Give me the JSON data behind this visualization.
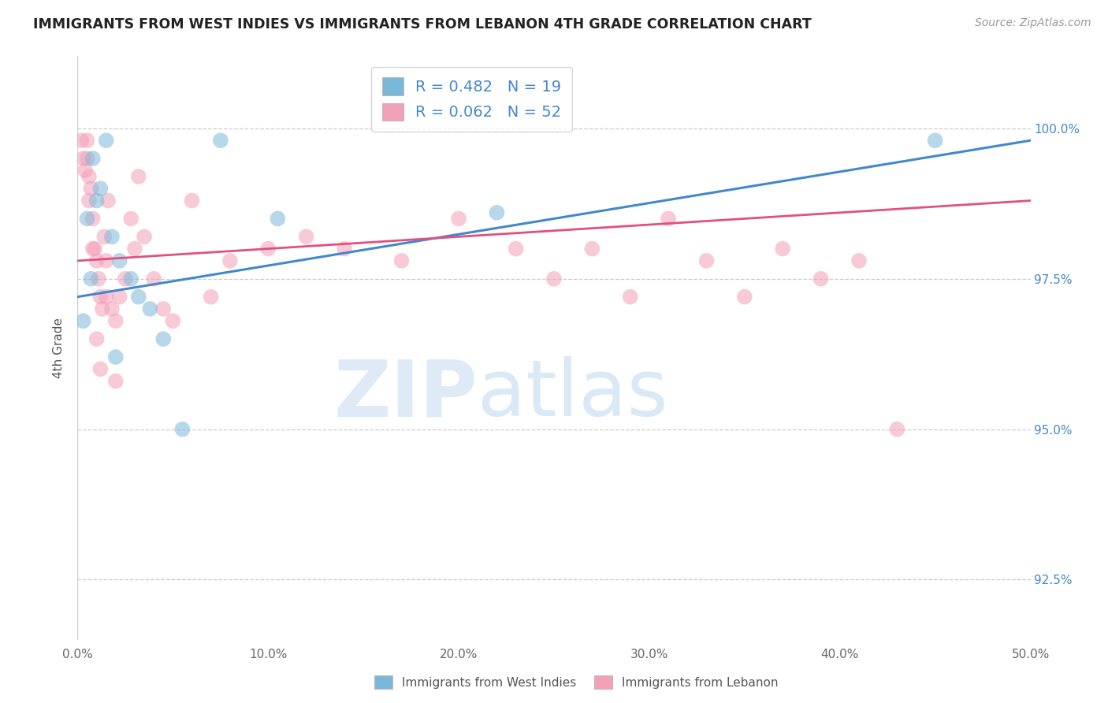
{
  "title": "IMMIGRANTS FROM WEST INDIES VS IMMIGRANTS FROM LEBANON 4TH GRADE CORRELATION CHART",
  "source": "Source: ZipAtlas.com",
  "ylabel": "4th Grade",
  "legend_label_blue": "Immigrants from West Indies",
  "legend_label_pink": "Immigrants from Lebanon",
  "R_blue": 0.482,
  "N_blue": 19,
  "R_pink": 0.062,
  "N_pink": 52,
  "xlim": [
    0.0,
    50.0
  ],
  "ylim": [
    91.5,
    101.2
  ],
  "yticks": [
    92.5,
    95.0,
    97.5,
    100.0
  ],
  "xticks": [
    0.0,
    10.0,
    20.0,
    30.0,
    40.0,
    50.0
  ],
  "color_blue": "#7ab8d9",
  "color_pink": "#f4a0b8",
  "color_blue_line": "#4488cc",
  "color_pink_line": "#e05080",
  "color_text_blue": "#4488cc",
  "blue_x": [
    0.3,
    0.5,
    0.8,
    1.2,
    1.8,
    2.2,
    2.8,
    3.2,
    3.8,
    4.5,
    5.5,
    7.5,
    10.5,
    45.0,
    22.0,
    2.0,
    1.5,
    1.0,
    0.7
  ],
  "blue_y": [
    96.8,
    98.5,
    99.5,
    99.0,
    98.2,
    97.8,
    97.5,
    97.2,
    97.0,
    96.5,
    95.0,
    99.8,
    98.5,
    99.8,
    98.6,
    96.2,
    99.8,
    98.8,
    97.5
  ],
  "pink_x": [
    0.2,
    0.3,
    0.4,
    0.5,
    0.6,
    0.7,
    0.8,
    0.9,
    1.0,
    1.1,
    1.2,
    1.3,
    1.4,
    1.5,
    1.6,
    1.8,
    2.0,
    2.2,
    2.5,
    2.8,
    3.0,
    3.2,
    3.5,
    4.0,
    4.5,
    5.0,
    6.0,
    7.0,
    8.0,
    10.0,
    12.0,
    14.0,
    17.0,
    20.0,
    23.0,
    25.0,
    27.0,
    29.0,
    31.0,
    33.0,
    35.0,
    37.0,
    39.0,
    41.0,
    43.0,
    0.5,
    0.6,
    0.8,
    1.0,
    1.2,
    1.5,
    2.0
  ],
  "pink_y": [
    99.8,
    99.5,
    99.3,
    99.8,
    99.2,
    99.0,
    98.5,
    98.0,
    97.8,
    97.5,
    97.2,
    97.0,
    98.2,
    97.8,
    98.8,
    97.0,
    96.8,
    97.2,
    97.5,
    98.5,
    98.0,
    99.2,
    98.2,
    97.5,
    97.0,
    96.8,
    98.8,
    97.2,
    97.8,
    98.0,
    98.2,
    98.0,
    97.8,
    98.5,
    98.0,
    97.5,
    98.0,
    97.2,
    98.5,
    97.8,
    97.2,
    98.0,
    97.5,
    97.8,
    95.0,
    99.5,
    98.8,
    98.0,
    96.5,
    96.0,
    97.2,
    95.8
  ],
  "watermark_zip": "ZIP",
  "watermark_atlas": "atlas",
  "background_color": "#ffffff"
}
